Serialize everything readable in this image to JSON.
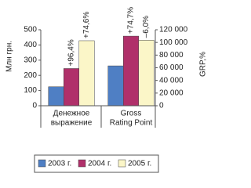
{
  "chart_data": {
    "type": "bar",
    "categories": [
      [
        "Денежное",
        "выражение"
      ],
      [
        "Gross",
        "Rating Point"
      ]
    ],
    "category_axes": [
      "y",
      "y2"
    ],
    "series": [
      {
        "name": "2003 г.",
        "color": "#4f7fc4",
        "values": [
          125,
          63000
        ]
      },
      {
        "name": "2004 г.",
        "color": "#b0306a",
        "values": [
          245,
          110000
        ]
      },
      {
        "name": "2005 г.",
        "color": "#fbf6c8",
        "values": [
          428,
          103500
        ]
      }
    ],
    "annotations": [
      {
        "text": "+96,4%",
        "series": 1,
        "category": 0
      },
      {
        "text": "+74,6%",
        "series": 2,
        "category": 0
      },
      {
        "text": "+74,7%",
        "series": 1,
        "category": 1
      },
      {
        "text": "–6,0%",
        "series": 2,
        "category": 1
      }
    ],
    "ylabel": "Млн грн.",
    "y2label": "GRP,%",
    "ylim": [
      0,
      500
    ],
    "yticks": [
      0,
      100,
      200,
      300,
      400,
      500
    ],
    "y2lim": [
      0,
      120000
    ],
    "y2ticks": [
      0,
      {
        "value": 20000,
        "label": "20 000"
      },
      {
        "value": 40000,
        "label": "40 000"
      },
      {
        "value": 60000,
        "label": "60 000"
      },
      {
        "value": 80000,
        "label": "80 000"
      },
      {
        "value": 100000,
        "label": "100 000"
      },
      {
        "value": 120000,
        "label": "120 000"
      }
    ]
  }
}
